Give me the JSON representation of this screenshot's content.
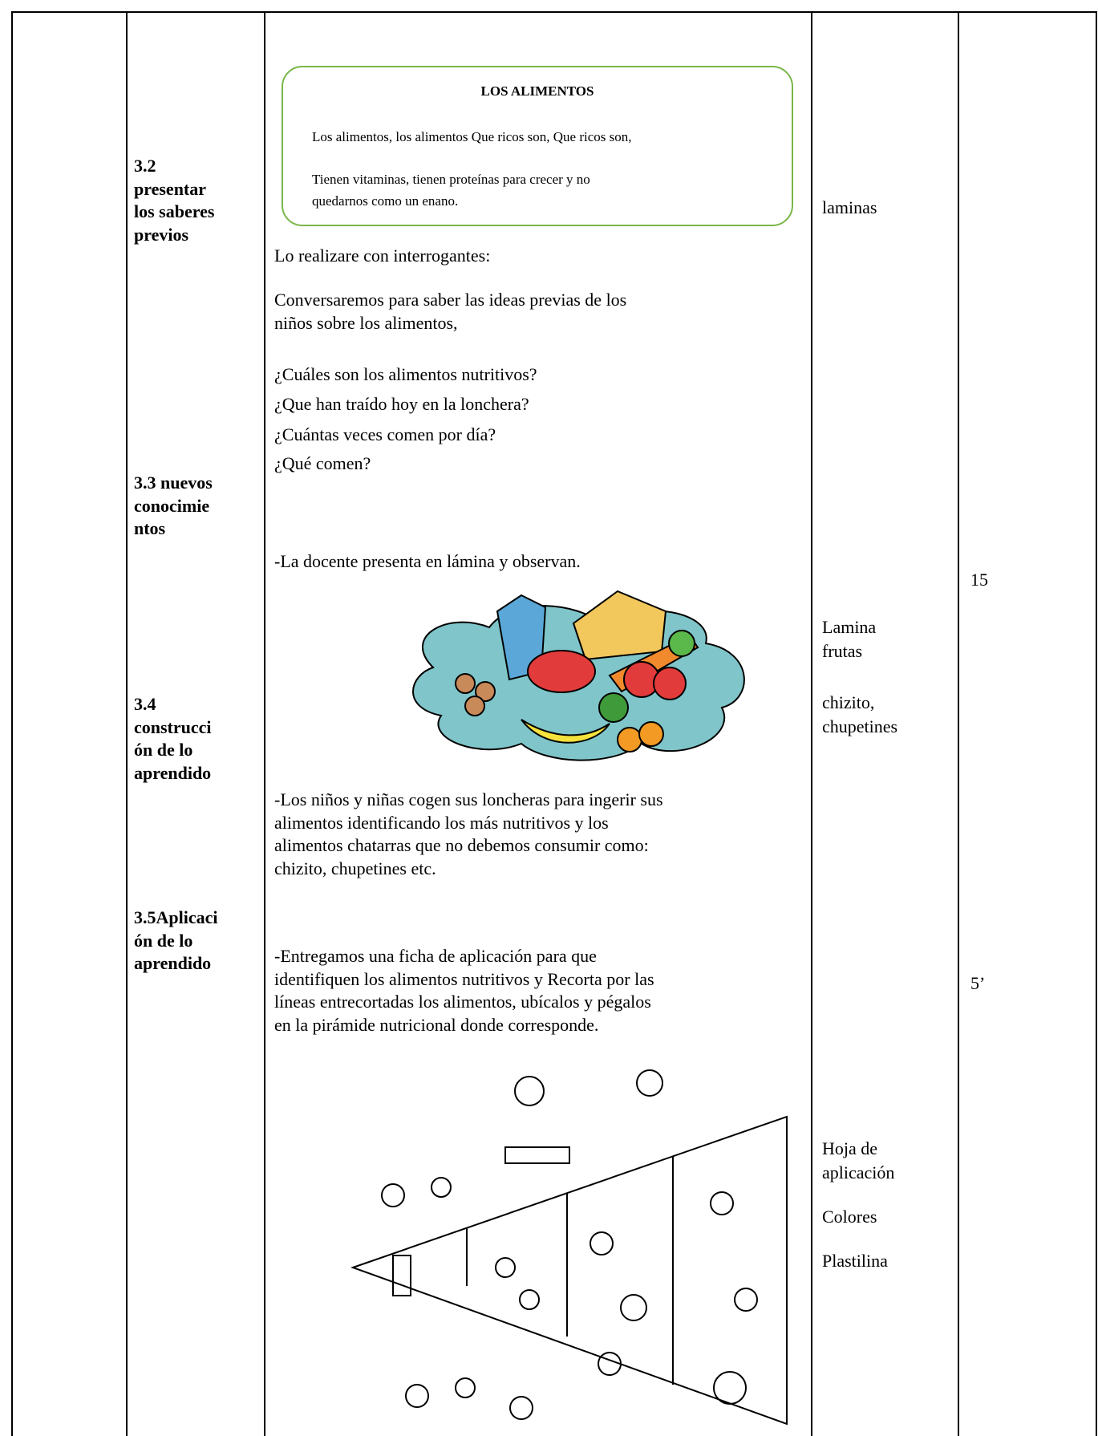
{
  "song": {
    "title": "LOS ALIMENTOS",
    "lines": [
      "Los alimentos, los alimentos Que ricos son, Que ricos son,",
      "Tienen vitaminas, tienen proteínas para crecer y no",
      "quedarnos como un enano."
    ]
  },
  "stages": [
    {
      "lines": [
        "3.2",
        "presentar",
        "los saberes",
        "previos"
      ]
    },
    {
      "lines": [
        "3.3 nuevos",
        "conocimie",
        "ntos"
      ]
    },
    {
      "lines": [
        "3.4",
        "construcci",
        "ón de lo",
        "aprendido"
      ]
    },
    {
      "lines": [
        "3.5Aplicaci",
        "ón de lo",
        "aprendido"
      ]
    }
  ],
  "activities": [
    {
      "lines": [
        "Lo realizare con interrogantes:"
      ]
    },
    {
      "lines": [
        "Conversaremos para saber las ideas previas de los",
        "niños sobre los alimentos,"
      ]
    },
    {
      "lines": [
        "¿Cuáles son los alimentos nutritivos?"
      ]
    },
    {
      "lines": [
        "¿Que han traído hoy en la lonchera?"
      ]
    },
    {
      "lines": [
        "¿Cuántas veces comen por día?"
      ]
    },
    {
      "lines": [
        "¿Qué comen?"
      ]
    },
    {
      "lines": [
        "-La docente presenta en lámina y observan."
      ]
    },
    {
      "lines": [
        "-Los niños y niñas cogen sus loncheras para ingerir sus",
        "alimentos identificando los más nutritivos y los",
        "alimentos chatarras que no debemos consumir como:",
        "chizito, chupetines etc."
      ]
    },
    {
      "lines": [
        "-Entregamos una ficha de aplicación para que",
        "identifiquen los alimentos nutritivos y Recorta por las",
        "líneas entrecortadas los alimentos, ubícalos y pégalos",
        "en la pirámide nutricional donde corresponde."
      ]
    }
  ],
  "materials": [
    {
      "lines": [
        "laminas"
      ]
    },
    {
      "lines": [
        "Lamina",
        "frutas"
      ]
    },
    {
      "lines": [
        "chizito,",
        "chupetines"
      ]
    },
    {
      "lines": [
        "Hoja de",
        "aplicación"
      ]
    },
    {
      "lines": [
        "Colores"
      ]
    },
    {
      "lines": [
        "Plastilina"
      ]
    }
  ],
  "times": [
    "15",
    "5’"
  ]
}
